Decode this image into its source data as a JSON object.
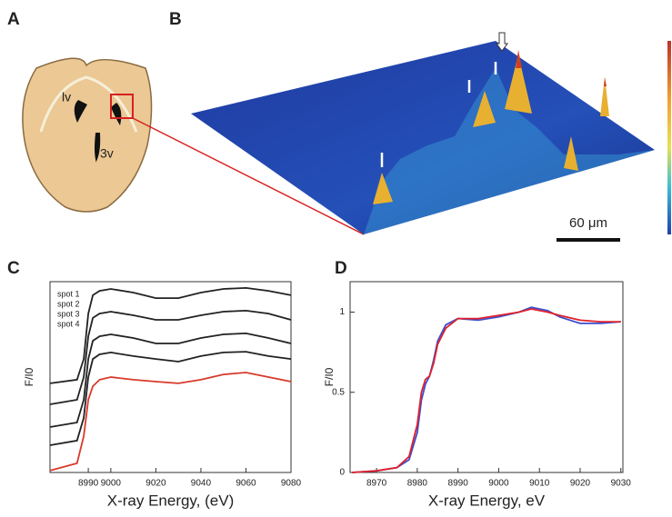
{
  "figure": {
    "panel_labels": [
      "A",
      "B",
      "C",
      "D"
    ],
    "brain_labels": [
      "lv",
      "3v"
    ],
    "scale_bar": "60 μm"
  },
  "chart_data": [
    {
      "type": "line",
      "xlabel": "X-ray Energy, (eV)",
      "ylabel": "F/I0",
      "x": [
        8973,
        8985,
        8988,
        8990,
        8992,
        8995,
        9000,
        9010,
        9020,
        9030,
        9040,
        9050,
        9060,
        9070,
        9080
      ],
      "xlim": [
        8973,
        9080
      ],
      "xticks": [
        8990,
        9000,
        9020,
        9040,
        9060,
        9080
      ],
      "ylim": [
        0,
        10
      ],
      "series": [
        {
          "name": "spot 1",
          "color": "#222222",
          "values": [
            4.67,
            4.86,
            5.95,
            8.33,
            9.29,
            9.52,
            9.62,
            9.43,
            9.14,
            9.14,
            9.43,
            9.62,
            9.67,
            9.52,
            9.29
          ]
        },
        {
          "name": "spot 2",
          "color": "#222222",
          "values": [
            3.57,
            3.81,
            5.0,
            7.14,
            8.1,
            8.33,
            8.43,
            8.24,
            8.0,
            8.0,
            8.24,
            8.43,
            8.48,
            8.33,
            8.0
          ]
        },
        {
          "name": "spot 3",
          "color": "#222222",
          "values": [
            2.38,
            2.62,
            3.81,
            5.95,
            6.9,
            7.14,
            7.24,
            7.05,
            6.76,
            6.76,
            7.05,
            7.24,
            7.29,
            7.05,
            6.76
          ]
        },
        {
          "name": "spot 4",
          "color": "#222222",
          "values": [
            1.43,
            1.67,
            2.86,
            5.0,
            5.95,
            6.19,
            6.29,
            6.1,
            5.95,
            5.81,
            6.1,
            6.29,
            6.33,
            6.1,
            5.95
          ]
        },
        {
          "color": "#d83a2a",
          "values": [
            0.1,
            0.48,
            1.9,
            3.81,
            4.52,
            4.86,
            5.0,
            4.86,
            4.76,
            4.67,
            4.86,
            5.14,
            5.24,
            5.0,
            4.76
          ]
        }
      ]
    },
    {
      "type": "line",
      "xlabel": "X-ray Energy, eV",
      "ylabel": "F/I0",
      "x": [
        8964,
        8970,
        8975,
        8978,
        8980,
        8981,
        8982,
        8983,
        8984,
        8985,
        8987,
        8990,
        8995,
        9000,
        9005,
        9008,
        9012,
        9015,
        9020,
        9025,
        9030
      ],
      "xlim": [
        8963.5,
        9030.5
      ],
      "xticks": [
        8970,
        8980,
        8990,
        9000,
        9010,
        9020,
        9030
      ],
      "ylim": [
        0,
        1.19
      ],
      "yticks": [
        0,
        0.5,
        1
      ],
      "series": [
        {
          "color": "#3a4fd0",
          "values": [
            0,
            0.01,
            0.03,
            0.08,
            0.25,
            0.45,
            0.55,
            0.6,
            0.7,
            0.82,
            0.92,
            0.96,
            0.95,
            0.97,
            1.0,
            1.03,
            1.01,
            0.97,
            0.93,
            0.93,
            0.94
          ]
        },
        {
          "color": "#e0202a",
          "values": [
            0,
            0.01,
            0.03,
            0.1,
            0.3,
            0.5,
            0.58,
            0.6,
            0.68,
            0.8,
            0.9,
            0.96,
            0.96,
            0.98,
            1.0,
            1.02,
            1.0,
            0.98,
            0.95,
            0.94,
            0.94
          ]
        }
      ]
    }
  ]
}
